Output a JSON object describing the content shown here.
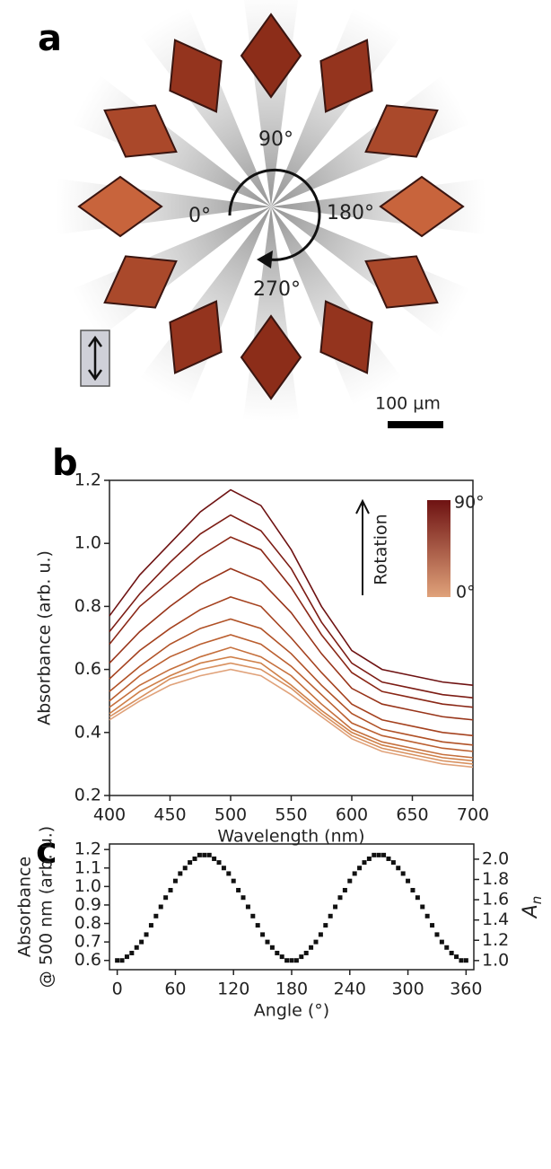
{
  "panel_a": {
    "label": "a",
    "angles": [
      "90°",
      "0°",
      "180°",
      "270°"
    ],
    "scale_bar": "100 μm"
  },
  "chart_data": [
    {
      "type": "line",
      "panel": "b",
      "xlabel": "Wavelength (nm)",
      "ylabel": "Absorbance (arb. u.)",
      "x": [
        400,
        425,
        450,
        475,
        500,
        525,
        550,
        575,
        600,
        625,
        650,
        675,
        700
      ],
      "xlim": [
        400,
        700
      ],
      "xticks": [
        400,
        450,
        500,
        550,
        600,
        650,
        700
      ],
      "ylim": [
        0.2,
        1.2
      ],
      "yticks": [
        0.2,
        0.4,
        0.6,
        0.8,
        {
          "value": 1,
          "label": "1.0"
        },
        1.2
      ],
      "colorbar": {
        "label": "Rotation",
        "top": "90°",
        "bottom": "0°"
      },
      "series": [
        {
          "color": "#6e1212",
          "values": [
            0.77,
            0.9,
            1.0,
            1.1,
            1.17,
            1.12,
            0.98,
            0.8,
            0.66,
            0.6,
            0.58,
            0.56,
            0.55
          ]
        },
        {
          "color": "#7c1c14",
          "values": [
            0.72,
            0.84,
            0.94,
            1.03,
            1.09,
            1.04,
            0.92,
            0.75,
            0.62,
            0.56,
            0.54,
            0.52,
            0.51
          ]
        },
        {
          "color": "#8a2716",
          "values": [
            0.68,
            0.8,
            0.88,
            0.96,
            1.02,
            0.98,
            0.86,
            0.71,
            0.59,
            0.53,
            0.51,
            0.49,
            0.48
          ]
        },
        {
          "color": "#983419",
          "values": [
            0.62,
            0.72,
            0.8,
            0.87,
            0.92,
            0.88,
            0.78,
            0.65,
            0.54,
            0.49,
            0.47,
            0.45,
            0.44
          ]
        },
        {
          "color": "#a5421f",
          "values": [
            0.57,
            0.66,
            0.73,
            0.79,
            0.83,
            0.8,
            0.7,
            0.59,
            0.49,
            0.44,
            0.42,
            0.4,
            0.39
          ]
        },
        {
          "color": "#b05126",
          "values": [
            0.53,
            0.61,
            0.68,
            0.73,
            0.76,
            0.73,
            0.65,
            0.55,
            0.46,
            0.41,
            0.39,
            0.37,
            0.36
          ]
        },
        {
          "color": "#bb5f30",
          "values": [
            0.5,
            0.58,
            0.64,
            0.68,
            0.71,
            0.68,
            0.61,
            0.52,
            0.43,
            0.39,
            0.37,
            0.35,
            0.34
          ]
        },
        {
          "color": "#c56f3c",
          "values": [
            0.48,
            0.55,
            0.6,
            0.64,
            0.67,
            0.64,
            0.58,
            0.49,
            0.41,
            0.37,
            0.35,
            0.33,
            0.32
          ]
        },
        {
          "color": "#cf8049",
          "values": [
            0.46,
            0.53,
            0.58,
            0.62,
            0.64,
            0.62,
            0.55,
            0.47,
            0.4,
            0.36,
            0.34,
            0.32,
            0.31
          ]
        },
        {
          "color": "#d89160",
          "values": [
            0.45,
            0.51,
            0.57,
            0.6,
            0.62,
            0.6,
            0.54,
            0.46,
            0.39,
            0.35,
            0.33,
            0.31,
            0.3
          ]
        },
        {
          "color": "#e0a27a",
          "values": [
            0.44,
            0.5,
            0.55,
            0.58,
            0.6,
            0.58,
            0.52,
            0.45,
            0.38,
            0.34,
            0.32,
            0.3,
            0.29
          ]
        }
      ]
    },
    {
      "type": "scatter",
      "panel": "c",
      "xlabel": "Angle (°)",
      "ylabel": [
        "Absorbance",
        "@ 500 nm (arb. u.)"
      ],
      "y2label": "A",
      "y2label_sub": "n",
      "color": "#111111",
      "x": [
        0,
        5,
        10,
        15,
        20,
        25,
        30,
        35,
        40,
        45,
        50,
        55,
        60,
        65,
        70,
        75,
        80,
        85,
        90,
        95,
        100,
        105,
        110,
        115,
        120,
        125,
        130,
        135,
        140,
        145,
        150,
        155,
        160,
        165,
        170,
        175,
        180,
        185,
        190,
        195,
        200,
        205,
        210,
        215,
        220,
        225,
        230,
        235,
        240,
        245,
        250,
        255,
        260,
        265,
        270,
        275,
        280,
        285,
        290,
        295,
        300,
        305,
        310,
        315,
        320,
        325,
        330,
        335,
        340,
        345,
        350,
        355,
        360
      ],
      "values": [
        0.6,
        0.6,
        0.62,
        0.64,
        0.67,
        0.7,
        0.74,
        0.79,
        0.84,
        0.89,
        0.94,
        0.98,
        1.03,
        1.07,
        1.1,
        1.13,
        1.15,
        1.17,
        1.17,
        1.17,
        1.15,
        1.13,
        1.1,
        1.07,
        1.03,
        0.98,
        0.94,
        0.89,
        0.84,
        0.79,
        0.74,
        0.7,
        0.67,
        0.64,
        0.62,
        0.6,
        0.6,
        0.6,
        0.62,
        0.64,
        0.67,
        0.7,
        0.74,
        0.79,
        0.84,
        0.89,
        0.94,
        0.98,
        1.03,
        1.07,
        1.1,
        1.13,
        1.15,
        1.17,
        1.17,
        1.17,
        1.15,
        1.13,
        1.1,
        1.07,
        1.03,
        0.98,
        0.94,
        0.89,
        0.84,
        0.79,
        0.74,
        0.7,
        0.67,
        0.64,
        0.62,
        0.6,
        0.6
      ],
      "xlim": [
        -8,
        368
      ],
      "xticks": [
        0,
        60,
        120,
        180,
        240,
        300,
        360
      ],
      "ylim": [
        0.55,
        1.23
      ],
      "yticks": [
        0.6,
        0.7,
        0.8,
        0.9,
        {
          "value": 1,
          "label": "1.0"
        },
        1.1,
        1.2
      ],
      "y2lim": [
        0.91,
        2.15
      ],
      "y2ticks": [
        {
          "value": 1,
          "label": "1.0"
        },
        1.2,
        1.4,
        1.6,
        1.8,
        {
          "value": 2,
          "label": "2.0"
        }
      ]
    }
  ]
}
